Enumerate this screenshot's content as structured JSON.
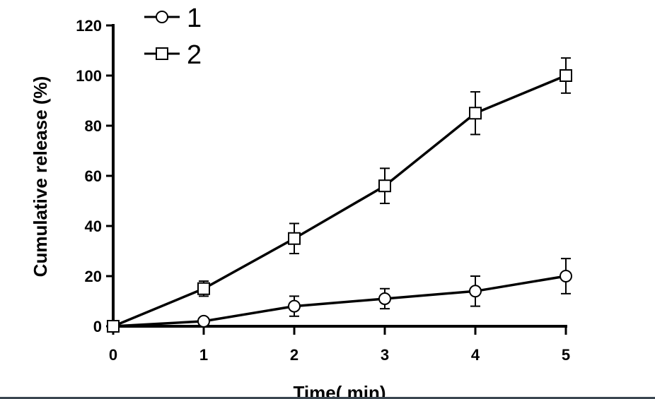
{
  "chart_data": {
    "type": "line",
    "title": "",
    "xlabel": "Time( min)",
    "ylabel": "Cumulative release (%)",
    "xlim": [
      0,
      5
    ],
    "ylim": [
      0,
      120
    ],
    "xticks": [
      "0",
      "1",
      "2",
      "3",
      "4",
      "5"
    ],
    "yticks": [
      "0",
      "20",
      "40",
      "60",
      "80",
      "100",
      "120"
    ],
    "grid": false,
    "legend_position": "top-left",
    "x": [
      0,
      1,
      2,
      3,
      4,
      5
    ],
    "series": [
      {
        "name": "1",
        "marker": "circle",
        "values": [
          0,
          2,
          8,
          11,
          14,
          20
        ],
        "errors": [
          0,
          0,
          4,
          4,
          6,
          7
        ]
      },
      {
        "name": "2",
        "marker": "square",
        "values": [
          0,
          15,
          35,
          56,
          85,
          100
        ],
        "errors": [
          0,
          3,
          6,
          7,
          8.5,
          7
        ]
      }
    ]
  }
}
